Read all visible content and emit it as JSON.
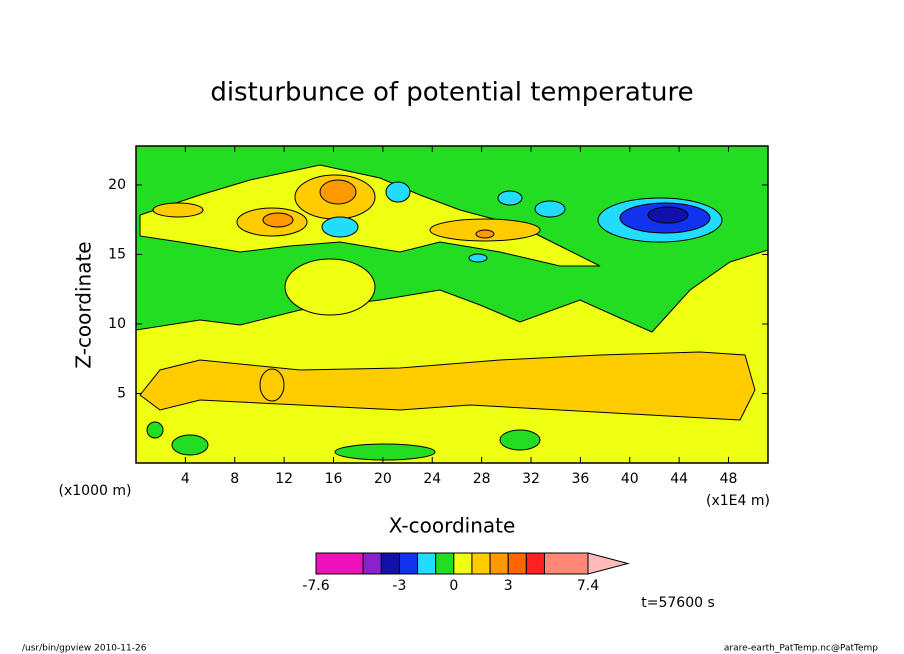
{
  "chart_data": {
    "type": "contour",
    "title": "disturbunce of potential temperature",
    "x_label": "X-coordinate",
    "y_label": "Z-coordinate",
    "x_unit": "(x1000 m)",
    "x_unit2": "(x1E4 m)",
    "time_label": "t=57600 s",
    "footer_left": "/usr/bin/gpview   2010-11-26",
    "footer_right": "arare-earth_PatTemp.nc@PatTemp",
    "xlim": [
      0,
      51.2
    ],
    "ylim": [
      0,
      22.8
    ],
    "xticks": [
      4,
      8,
      12,
      16,
      20,
      24,
      28,
      32,
      36,
      40,
      44,
      48
    ],
    "yticks": [
      5,
      10,
      15,
      20
    ],
    "colorbar": {
      "levels": [
        -7.6,
        -5,
        -4,
        -3,
        -2,
        -1,
        0,
        1,
        2,
        3,
        4,
        5,
        7.4
      ],
      "colors": [
        "#ee11bb",
        "#8822cc",
        "#1111aa",
        "#1133ee",
        "#22ddff",
        "#22dd22",
        "#eeff11",
        "#ffcc00",
        "#ff9900",
        "#ff6600",
        "#ff2222",
        "#ff8877"
      ],
      "extend_color": "#ffbbbb",
      "ticks": [
        -7.6,
        -3,
        0,
        3,
        7.4
      ]
    }
  }
}
